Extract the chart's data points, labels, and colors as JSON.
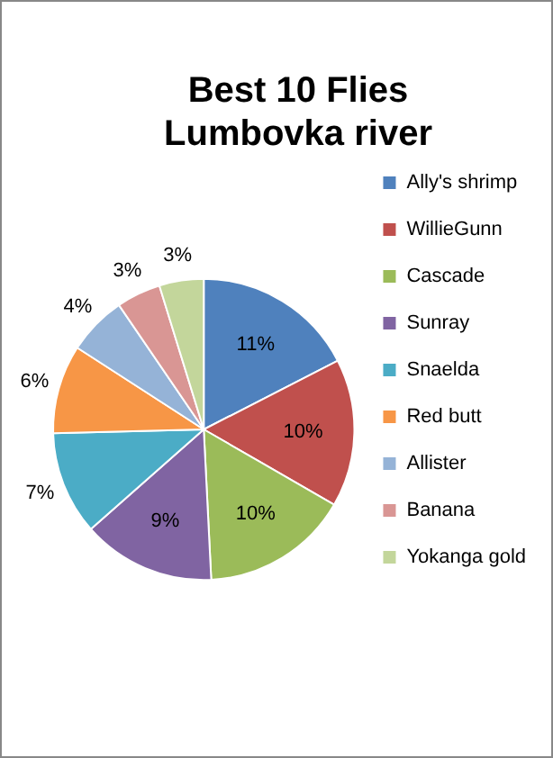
{
  "chart_data": {
    "type": "pie",
    "title": "Best 10 Flies\nLumbovka river",
    "categories": [
      "Ally's shrimp",
      "WillieGunn",
      "Cascade",
      "Sunray",
      "Snaelda",
      "Red butt",
      "Allister",
      "Banana",
      "Yokanga gold"
    ],
    "values": [
      11,
      10,
      10,
      9,
      7,
      6,
      4,
      3,
      3
    ],
    "value_labels": [
      "11%",
      "10%",
      "10%",
      "9%",
      "7%",
      "6%",
      "4%",
      "3%",
      "3%"
    ],
    "colors": [
      "#4f81bd",
      "#c0504d",
      "#9bbb59",
      "#8064a2",
      "#4bacc6",
      "#f79646",
      "#95b3d7",
      "#d99694",
      "#c3d69b"
    ],
    "legend": "right"
  }
}
